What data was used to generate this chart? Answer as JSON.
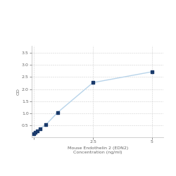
{
  "x": [
    0,
    0.0625,
    0.125,
    0.25,
    0.5,
    1.0,
    2.5,
    5.0
  ],
  "y": [
    0.152,
    0.21,
    0.265,
    0.35,
    0.52,
    1.03,
    2.27,
    2.72
  ],
  "xlabel_line1": "Mouse Endothelin 2 (EDN2)",
  "xlabel_line2": "Concentration (ng/ml)",
  "ylabel": "OD",
  "xlim": [
    -0.1,
    5.5
  ],
  "ylim": [
    0,
    3.8
  ],
  "yticks": [
    0.5,
    1.0,
    1.5,
    2.0,
    2.5,
    3.0,
    3.5
  ],
  "xticks": [
    0,
    2.5,
    5
  ],
  "line_color": "#b8d4ea",
  "marker_color": "#1a3a6b",
  "marker_size": 3.5,
  "line_width": 1.0,
  "grid_color": "#d0d0d0",
  "bg_color": "#ffffff",
  "font_size_label": 4.5,
  "font_size_tick": 4.5
}
